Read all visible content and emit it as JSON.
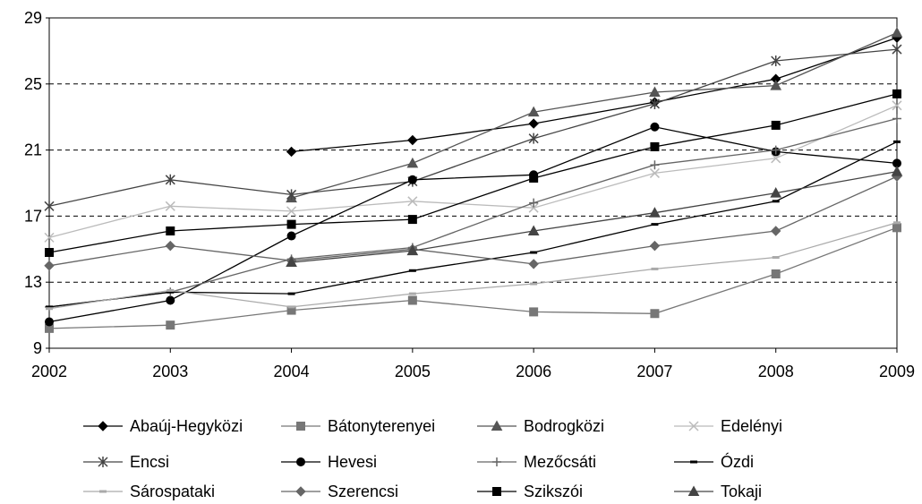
{
  "chart_data": {
    "type": "line",
    "title": "",
    "xlabel": "",
    "ylabel": "",
    "x": [
      "2002",
      "2003",
      "2004",
      "2005",
      "2006",
      "2007",
      "2008",
      "2009"
    ],
    "ylim": [
      9,
      29
    ],
    "yticks": [
      9,
      13,
      17,
      21,
      25,
      29
    ],
    "gridlines": [
      13,
      17,
      21,
      25
    ],
    "grid": "horizontal dashed",
    "legend_position": "bottom",
    "series": [
      {
        "name": "Abaúj-Hegyközi",
        "marker": "diamond-filled",
        "color": "#000000",
        "values": [
          null,
          null,
          20.9,
          21.6,
          22.6,
          23.9,
          25.3,
          27.8
        ]
      },
      {
        "name": "Bátonyterenyei",
        "marker": "square-filled",
        "color": "#777777",
        "values": [
          10.2,
          10.4,
          11.3,
          11.9,
          11.2,
          11.1,
          13.5,
          16.3
        ]
      },
      {
        "name": "Bodrogközi",
        "marker": "triangle-filled",
        "color": "#555555",
        "values": [
          null,
          null,
          18.1,
          20.2,
          23.3,
          24.5,
          24.9,
          28.1
        ]
      },
      {
        "name": "Edelényi",
        "marker": "x",
        "color": "#bbbbbb",
        "values": [
          15.7,
          17.6,
          17.3,
          17.9,
          17.5,
          19.6,
          20.5,
          23.7
        ]
      },
      {
        "name": "Encsi",
        "marker": "asterisk",
        "color": "#444444",
        "values": [
          17.6,
          19.2,
          18.3,
          19.1,
          21.7,
          23.8,
          26.4,
          27.1
        ]
      },
      {
        "name": "Hevesi",
        "marker": "circle-filled",
        "color": "#000000",
        "values": [
          10.6,
          11.9,
          15.8,
          19.2,
          19.5,
          22.4,
          20.9,
          20.2
        ]
      },
      {
        "name": "Mezőcsáti",
        "marker": "plus",
        "color": "#666666",
        "values": [
          11.5,
          12.4,
          14.4,
          15.1,
          17.8,
          20.1,
          21.0,
          22.9
        ]
      },
      {
        "name": "Ózdi",
        "marker": "dash",
        "color": "#000000",
        "values": [
          11.5,
          12.4,
          12.3,
          13.7,
          14.8,
          16.5,
          17.9,
          21.5
        ]
      },
      {
        "name": "Sárospataki",
        "marker": "dash",
        "color": "#aaaaaa",
        "values": [
          11.4,
          12.5,
          11.5,
          12.3,
          12.9,
          13.8,
          14.5,
          16.6
        ]
      },
      {
        "name": "Szerencsi",
        "marker": "diamond-filled",
        "color": "#666666",
        "values": [
          14.0,
          15.2,
          14.3,
          15.0,
          14.1,
          15.2,
          16.1,
          19.4
        ]
      },
      {
        "name": "Szikszói",
        "marker": "square-filled",
        "color": "#000000",
        "values": [
          14.8,
          16.1,
          16.5,
          16.8,
          19.3,
          21.2,
          22.5,
          24.4
        ]
      },
      {
        "name": "Tokaji",
        "marker": "triangle-filled",
        "color": "#444444",
        "values": [
          null,
          null,
          14.2,
          14.9,
          16.1,
          17.2,
          18.4,
          19.7
        ]
      }
    ]
  }
}
